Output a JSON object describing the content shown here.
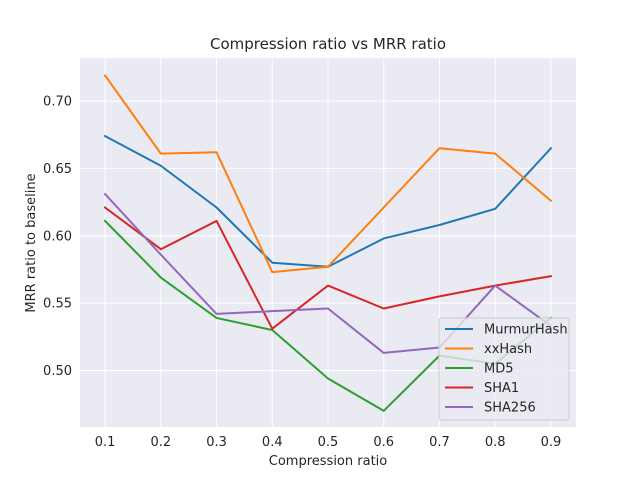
{
  "chart_data": {
    "type": "line",
    "title": "Compression ratio vs MRR ratio",
    "xlabel": "Compression ratio",
    "ylabel": "MRR ratio to baseline",
    "x": [
      0.1,
      0.2,
      0.3,
      0.4,
      0.5,
      0.6,
      0.7,
      0.8,
      0.9
    ],
    "x_ticks": [
      "0.1",
      "0.2",
      "0.3",
      "0.4",
      "0.5",
      "0.6",
      "0.7",
      "0.8",
      "0.9"
    ],
    "y_ticks": [
      "0.50",
      "0.55",
      "0.60",
      "0.65",
      "0.70"
    ],
    "y_tick_values": [
      0.5,
      0.55,
      0.6,
      0.65,
      0.7
    ],
    "xlim": [
      0.055,
      0.945
    ],
    "ylim": [
      0.458,
      0.732
    ],
    "grid": true,
    "legend_position": "lower-right",
    "series": [
      {
        "name": "MurmurHash",
        "color": "#1f77b4",
        "values": [
          0.674,
          0.652,
          0.621,
          0.58,
          0.577,
          0.598,
          0.608,
          0.62,
          0.665
        ]
      },
      {
        "name": "xxHash",
        "color": "#ff7f0e",
        "values": [
          0.719,
          0.661,
          0.662,
          0.573,
          0.577,
          0.621,
          0.665,
          0.661,
          0.626
        ]
      },
      {
        "name": "MD5",
        "color": "#2ca02c",
        "values": [
          0.611,
          0.569,
          0.539,
          0.53,
          0.494,
          0.47,
          0.511,
          0.505,
          0.539
        ]
      },
      {
        "name": "SHA1",
        "color": "#d62728",
        "values": [
          0.621,
          0.59,
          0.611,
          0.531,
          0.563,
          0.546,
          0.555,
          0.563,
          0.57
        ]
      },
      {
        "name": "SHA256",
        "color": "#9467bd",
        "values": [
          0.631,
          0.586,
          0.542,
          0.544,
          0.546,
          0.513,
          0.517,
          0.563,
          0.533
        ]
      }
    ]
  }
}
